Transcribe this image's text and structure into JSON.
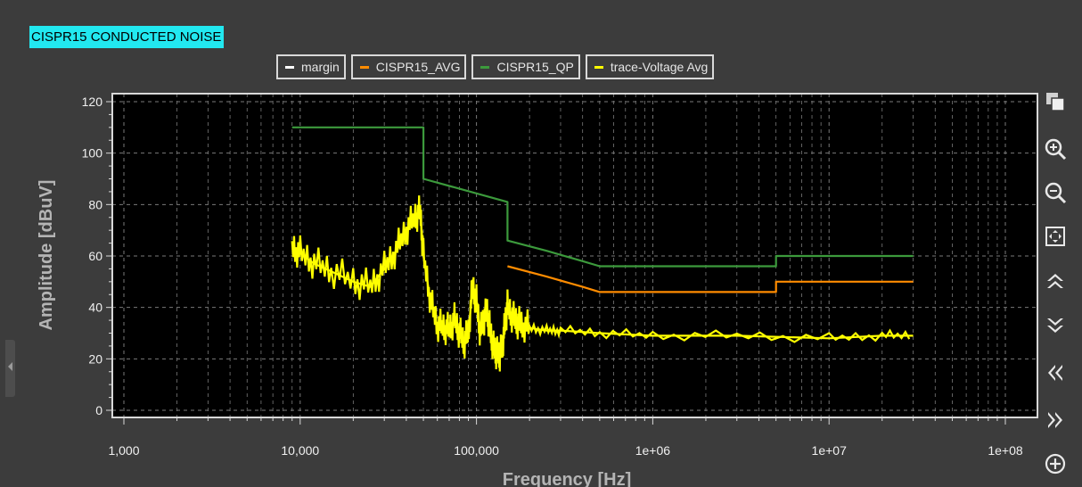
{
  "window": {
    "title_badge": "CISPR15 CONDUCTED NOISE"
  },
  "legend": [
    {
      "label": "margin",
      "color": "#ffffff"
    },
    {
      "label": "CISPR15_AVG",
      "color": "#ff8c00"
    },
    {
      "label": "CISPR15_QP",
      "color": "#3c9a3c"
    },
    {
      "label": "trace-Voltage Avg",
      "color": "#ffff00"
    }
  ],
  "toolbar": {
    "icons": [
      "copy-icon",
      "zoom-in-icon",
      "zoom-out-icon",
      "zoom-fit-icon",
      "scroll-up-icon",
      "scroll-down-icon",
      "scroll-left-icon",
      "scroll-right-icon",
      "add-icon"
    ]
  },
  "chart_data": {
    "type": "line",
    "title": "",
    "xlabel": "Frequency [Hz]",
    "ylabel": "Amplitude [dBuV]",
    "xscale": "log",
    "xlim": [
      1000,
      100000000
    ],
    "ylim": [
      0,
      120
    ],
    "x_ticks": [
      1000,
      10000,
      100000,
      1000000,
      10000000,
      100000000
    ],
    "x_tick_labels": [
      "1,000",
      "10,000",
      "100,000",
      "1e+06",
      "1e+07",
      "1e+08"
    ],
    "y_ticks": [
      0,
      20,
      40,
      60,
      80,
      100,
      120
    ],
    "y_tick_labels": [
      "0",
      "20",
      "40",
      "60",
      "80",
      "100",
      "120"
    ],
    "grid": true,
    "legend_position": "top-center",
    "background": "#000000",
    "series": [
      {
        "name": "CISPR15_QP",
        "color": "#3c9a3c",
        "x": [
          9000,
          50000,
          50000,
          150000,
          150000,
          250000,
          400000,
          500000,
          5000000,
          5000000,
          30000000
        ],
        "y": [
          110,
          110,
          90,
          81,
          66,
          62,
          58,
          56,
          56,
          60,
          60
        ]
      },
      {
        "name": "CISPR15_AVG",
        "color": "#ff8c00",
        "x": [
          150000,
          250000,
          400000,
          500000,
          5000000,
          5000000,
          30000000
        ],
        "y": [
          56,
          52,
          48,
          46,
          46,
          50,
          50
        ]
      },
      {
        "name": "trace-Voltage Avg",
        "color": "#ffff00",
        "x": [
          9000,
          10000,
          12000,
          15000,
          20000,
          25000,
          30000,
          35000,
          40000,
          45000,
          48000,
          50000,
          55000,
          60000,
          65000,
          70000,
          75000,
          80000,
          85000,
          90000,
          95000,
          100000,
          105000,
          110000,
          115000,
          120000,
          125000,
          130000,
          135000,
          140000,
          145000,
          150000,
          160000,
          170000,
          180000,
          200000,
          250000,
          300000,
          500000,
          1000000,
          3000000,
          10000000,
          20000000,
          30000000
        ],
        "y": [
          63,
          61,
          57,
          54,
          50,
          48,
          55,
          62,
          70,
          75,
          77,
          60,
          42,
          33,
          32,
          31,
          35,
          30,
          26,
          30,
          48,
          42,
          30,
          35,
          38,
          30,
          24,
          22,
          21,
          24,
          33,
          40,
          36,
          34,
          33,
          32,
          31,
          31,
          30,
          29,
          29,
          28,
          29,
          29
        ]
      }
    ]
  }
}
